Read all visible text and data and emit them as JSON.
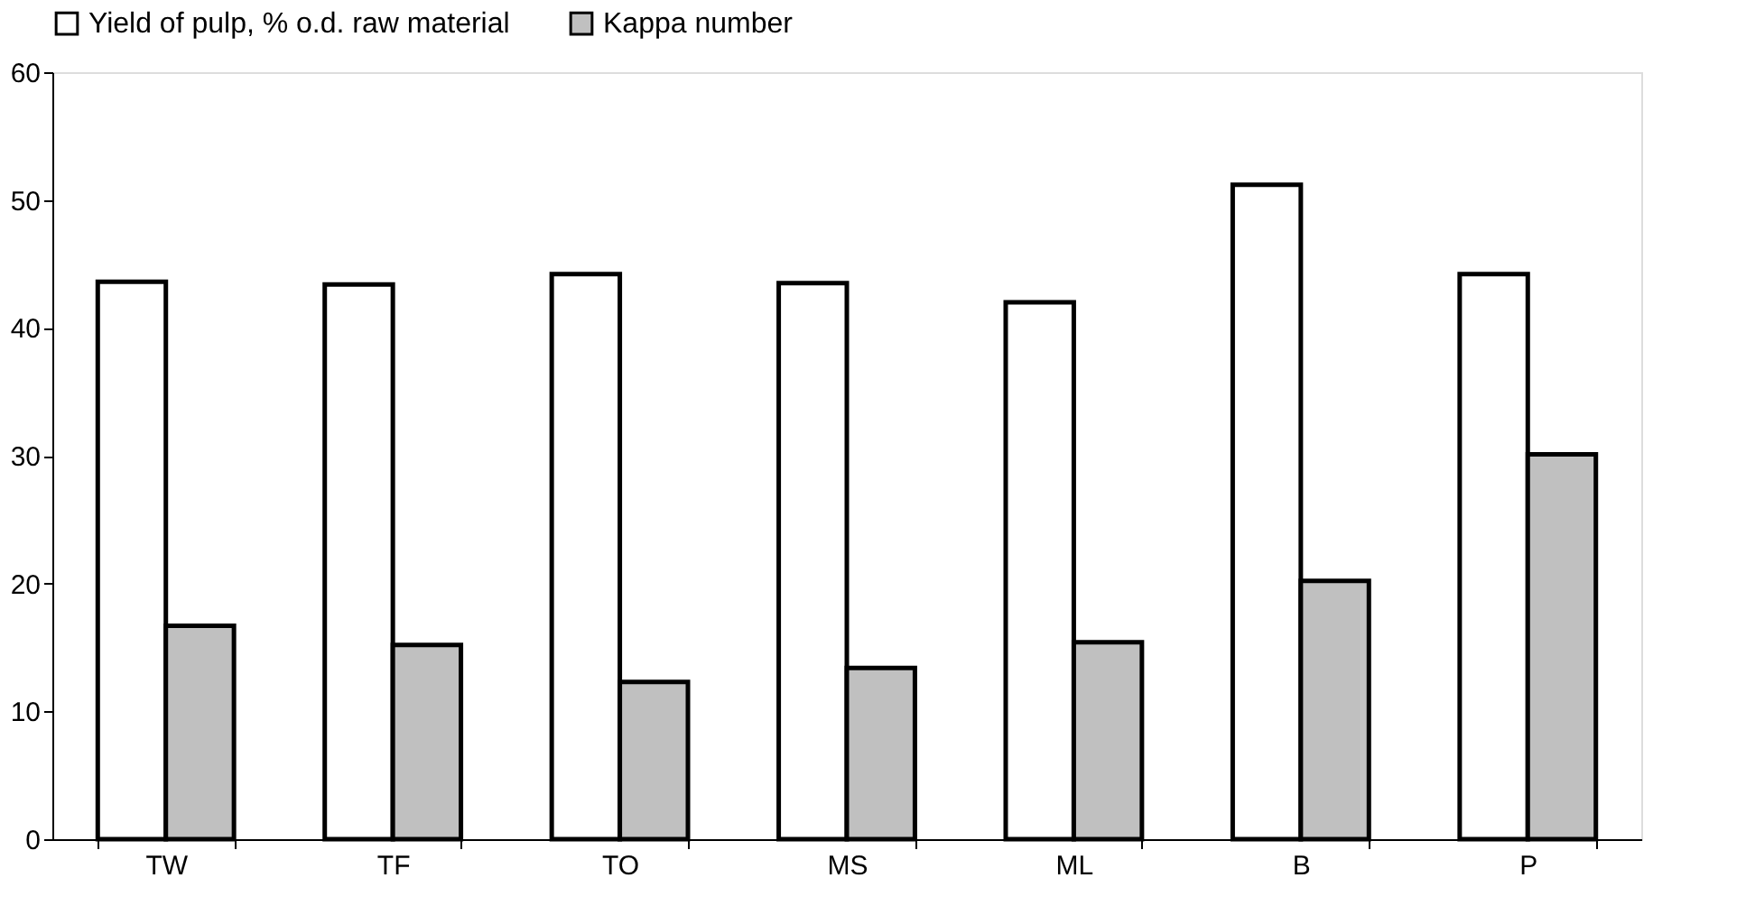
{
  "chart_data": {
    "type": "bar",
    "categories": [
      "TW",
      "TF",
      "TO",
      "MS",
      "ML",
      "B",
      "P"
    ],
    "series": [
      {
        "name": "Yield of pulp, % o.d. raw material",
        "color": "#ffffff",
        "values": [
          43.6,
          43.4,
          44.2,
          43.5,
          42.0,
          51.2,
          44.2
        ]
      },
      {
        "name": "Kappa number",
        "color": "#c0c0c0",
        "values": [
          16.7,
          15.2,
          12.3,
          13.4,
          15.4,
          20.2,
          30.1
        ]
      }
    ],
    "ylim": [
      0,
      60
    ],
    "yticks": [
      0,
      10,
      20,
      30,
      40,
      50,
      60
    ],
    "grid": false,
    "legend": "top"
  }
}
